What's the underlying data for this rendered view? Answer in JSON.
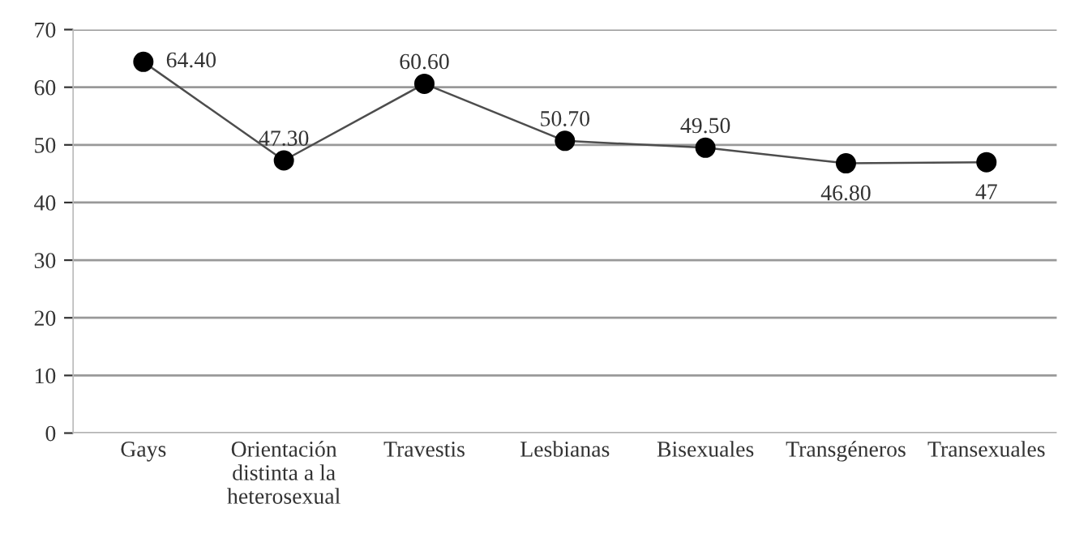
{
  "chart_data": {
    "type": "line",
    "categories": [
      "Gays",
      "Orientación\ndistinta a la\nheterosexual",
      "Travestis",
      "Lesbianas",
      "Bisexuales",
      "Transgéneros",
      "Transexuales"
    ],
    "values": [
      64.4,
      47.3,
      60.6,
      50.7,
      49.5,
      46.8,
      47
    ],
    "value_labels": [
      "64.40",
      "47.30",
      "60.60",
      "50.70",
      "49.50",
      "46.80",
      "47"
    ],
    "color": "#4d4d4d",
    "marker": "circle",
    "line_style": "solid",
    "ylim": [
      0,
      70
    ],
    "yticks": [
      0,
      10,
      20,
      30,
      40,
      50,
      60,
      70
    ],
    "grid": "y",
    "legend": false
  }
}
